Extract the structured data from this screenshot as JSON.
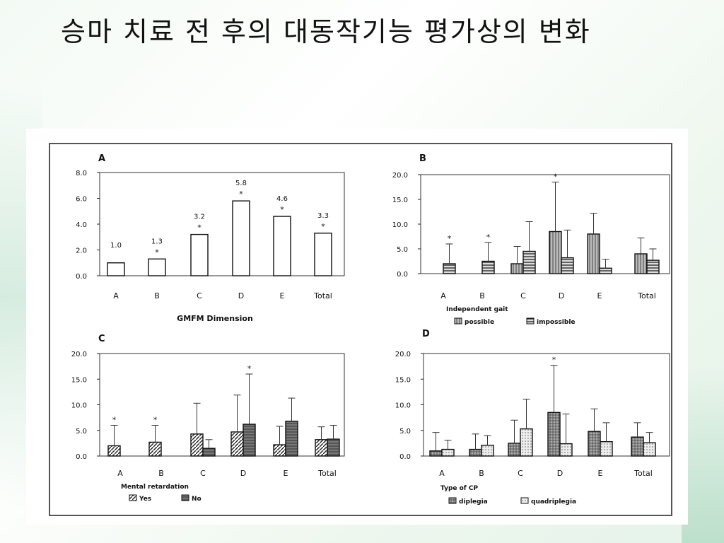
{
  "slide": {
    "title": "승마 치료 전 후의 대동작기능 평가상의 변화"
  },
  "colors": {
    "bar_outline": "#111111",
    "hatch": "#555555",
    "axis": "#111111"
  },
  "chart_data": [
    {
      "id": "A",
      "type": "bar",
      "panel_label": "A",
      "categories": [
        "A",
        "B",
        "C",
        "D",
        "E",
        "Total"
      ],
      "series": [
        {
          "values": [
            1.0,
            1.3,
            3.2,
            5.8,
            4.6,
            3.3
          ],
          "labels": [
            "1.0",
            "1.3",
            "3.2",
            "5.8",
            "4.6",
            "3.3"
          ],
          "fill": "white"
        }
      ],
      "asterisks": [
        false,
        true,
        true,
        true,
        true,
        true
      ],
      "yticks": [
        "0.0",
        "2.0",
        "4.0",
        "6.0",
        "8.0"
      ],
      "ylim": [
        0,
        8
      ],
      "xlabel": "GMFM Dimension",
      "legend_title": ""
    },
    {
      "id": "B",
      "type": "bar",
      "panel_label": "B",
      "categories": [
        "A",
        "B",
        "C",
        "D",
        "E",
        "Total"
      ],
      "series": [
        {
          "name": "possible",
          "values": [
            0,
            0,
            2.0,
            8.5,
            8.0,
            4.0
          ],
          "err": [
            0,
            0,
            3.5,
            10.0,
            4.2,
            3.2
          ],
          "fill": "vstripe"
        },
        {
          "name": "impossible",
          "values": [
            2.0,
            2.5,
            4.5,
            3.2,
            1.1,
            2.7
          ],
          "err": [
            4.0,
            3.8,
            6.0,
            5.6,
            1.8,
            2.3
          ],
          "fill": "hstripe"
        }
      ],
      "asterisks": [
        true,
        true,
        false,
        true,
        false,
        false
      ],
      "yticks": [
        "0.0",
        "5.0",
        "10.0",
        "15.0",
        "20.0"
      ],
      "ylim": [
        0,
        20
      ],
      "xlabel": "",
      "legend_title": "Independent gait"
    },
    {
      "id": "C",
      "type": "bar",
      "panel_label": "C",
      "categories": [
        "A",
        "B",
        "C",
        "D",
        "E",
        "Total"
      ],
      "series": [
        {
          "name": "Yes",
          "values": [
            2.0,
            2.7,
            4.3,
            4.7,
            2.2,
            3.2
          ],
          "err": [
            4.0,
            3.3,
            6.0,
            7.2,
            3.6,
            2.5
          ],
          "fill": "diag"
        },
        {
          "name": "No",
          "values": [
            0,
            0,
            1.5,
            6.2,
            6.8,
            3.3
          ],
          "err": [
            0,
            0,
            1.7,
            9.8,
            4.5,
            2.7
          ],
          "fill": "dark"
        }
      ],
      "asterisks": [
        true,
        true,
        false,
        true,
        false,
        false
      ],
      "yticks": [
        "0.0",
        "5.0",
        "10.0",
        "15.0",
        "20.0"
      ],
      "ylim": [
        0,
        20
      ],
      "xlabel": "",
      "legend_title": "Mental retardation"
    },
    {
      "id": "D",
      "type": "bar",
      "panel_label": "D",
      "categories": [
        "A",
        "B",
        "C",
        "D",
        "E",
        "Total"
      ],
      "series": [
        {
          "name": "diplegia",
          "values": [
            1.0,
            1.3,
            2.5,
            8.5,
            4.8,
            3.7
          ],
          "err": [
            3.6,
            3.0,
            4.5,
            9.2,
            4.4,
            2.8
          ],
          "fill": "cross"
        },
        {
          "name": "quadriplegia",
          "values": [
            1.3,
            2.1,
            5.3,
            2.4,
            2.8,
            2.6
          ],
          "err": [
            1.8,
            1.9,
            5.8,
            5.8,
            3.7,
            2.0
          ],
          "fill": "dots"
        }
      ],
      "asterisks": [
        false,
        false,
        false,
        true,
        false,
        false
      ],
      "yticks": [
        "0.0",
        "5.0",
        "10.0",
        "15.0",
        "20.0"
      ],
      "ylim": [
        0,
        20
      ],
      "xlabel": "",
      "legend_title": "Type of CP"
    }
  ]
}
